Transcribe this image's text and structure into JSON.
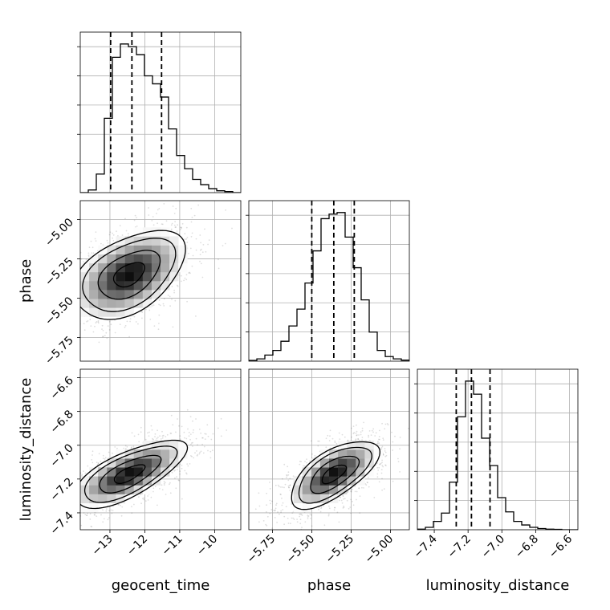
{
  "chart_data": {
    "type": "corner",
    "grid": true,
    "quantile_lines": "dashed",
    "parameters": [
      {
        "name": "geocent_time",
        "label": "geocent_time",
        "range": [
          -13.85,
          -9.25
        ],
        "ticks": [
          -13,
          -12,
          -11,
          -10
        ],
        "tick_labels": [
          "−13",
          "−12",
          "−11",
          "−10"
        ],
        "quantiles": [
          -12.98,
          -12.37,
          -11.52
        ],
        "histogram": {
          "bin_edges": [
            -13.85,
            -13.62,
            -13.39,
            -13.16,
            -12.93,
            -12.7,
            -12.47,
            -12.24,
            -12.01,
            -11.78,
            -11.55,
            -11.32,
            -11.09,
            -10.86,
            -10.63,
            -10.4,
            -10.17,
            -9.94,
            -9.71,
            -9.48,
            -9.25
          ],
          "counts": [
            0,
            1,
            7,
            28,
            51,
            56,
            55,
            52,
            44,
            41,
            36,
            24,
            14,
            9,
            5,
            3,
            1.5,
            0.7,
            0.4,
            0
          ]
        }
      },
      {
        "name": "phase",
        "label": "phase",
        "range": [
          -5.9,
          -4.88
        ],
        "ticks": [
          -5.75,
          -5.5,
          -5.25,
          -5.0
        ],
        "tick_labels": [
          "−5.75",
          "−5.50",
          "−5.25",
          "−5.00"
        ],
        "quantiles": [
          -5.5,
          -5.36,
          -5.23
        ],
        "histogram": {
          "bin_edges": [
            -5.9,
            -5.849,
            -5.798,
            -5.747,
            -5.696,
            -5.645,
            -5.594,
            -5.543,
            -5.492,
            -5.441,
            -5.39,
            -5.339,
            -5.288,
            -5.237,
            -5.186,
            -5.135,
            -5.084,
            -5.033,
            -4.982,
            -4.931,
            -4.88
          ],
          "counts": [
            0.5,
            1.5,
            4,
            7,
            13,
            23,
            34,
            51,
            72,
            93,
            96,
            97,
            81,
            61,
            40,
            19,
            7,
            3,
            1.5,
            0.7
          ]
        }
      },
      {
        "name": "luminosity_distance",
        "label": "luminosity_distance",
        "range": [
          -7.5,
          -6.55
        ],
        "ticks": [
          -7.4,
          -7.2,
          -7.0,
          -6.8,
          -6.6
        ],
        "tick_labels": [
          "−7.4",
          "−7.2",
          "−7.0",
          "−6.8",
          "−6.6"
        ],
        "quantiles": [
          -7.27,
          -7.18,
          -7.07
        ],
        "histogram": {
          "bin_edges": [
            -7.5,
            -7.4525,
            -7.405,
            -7.3575,
            -7.31,
            -7.2625,
            -7.215,
            -7.1675,
            -7.12,
            -7.0725,
            -7.025,
            -6.9775,
            -6.93,
            -6.8825,
            -6.835,
            -6.7875,
            -6.74,
            -6.6925,
            -6.645,
            -6.5975,
            -6.55
          ],
          "counts": [
            0.5,
            2,
            7,
            14,
            40,
            95,
            125,
            114,
            77,
            54,
            27,
            15,
            7,
            4,
            2,
            1,
            0.5,
            0.3,
            0,
            0
          ]
        }
      }
    ],
    "pairs": [
      {
        "x": "geocent_time",
        "y": "phase",
        "mean": [
          -12.45,
          -5.35
        ],
        "sd": [
          0.8,
          0.14
        ],
        "rho": 0.45
      },
      {
        "x": "geocent_time",
        "y": "luminosity_distance",
        "mean": [
          -12.45,
          -7.17
        ],
        "sd": [
          0.8,
          0.1
        ],
        "rho": 0.7
      },
      {
        "x": "phase",
        "y": "luminosity_distance",
        "mean": [
          -5.36,
          -7.17
        ],
        "sd": [
          0.14,
          0.1
        ],
        "rho": 0.65
      }
    ],
    "contour_levels_sigma": [
      1,
      2,
      3
    ]
  }
}
